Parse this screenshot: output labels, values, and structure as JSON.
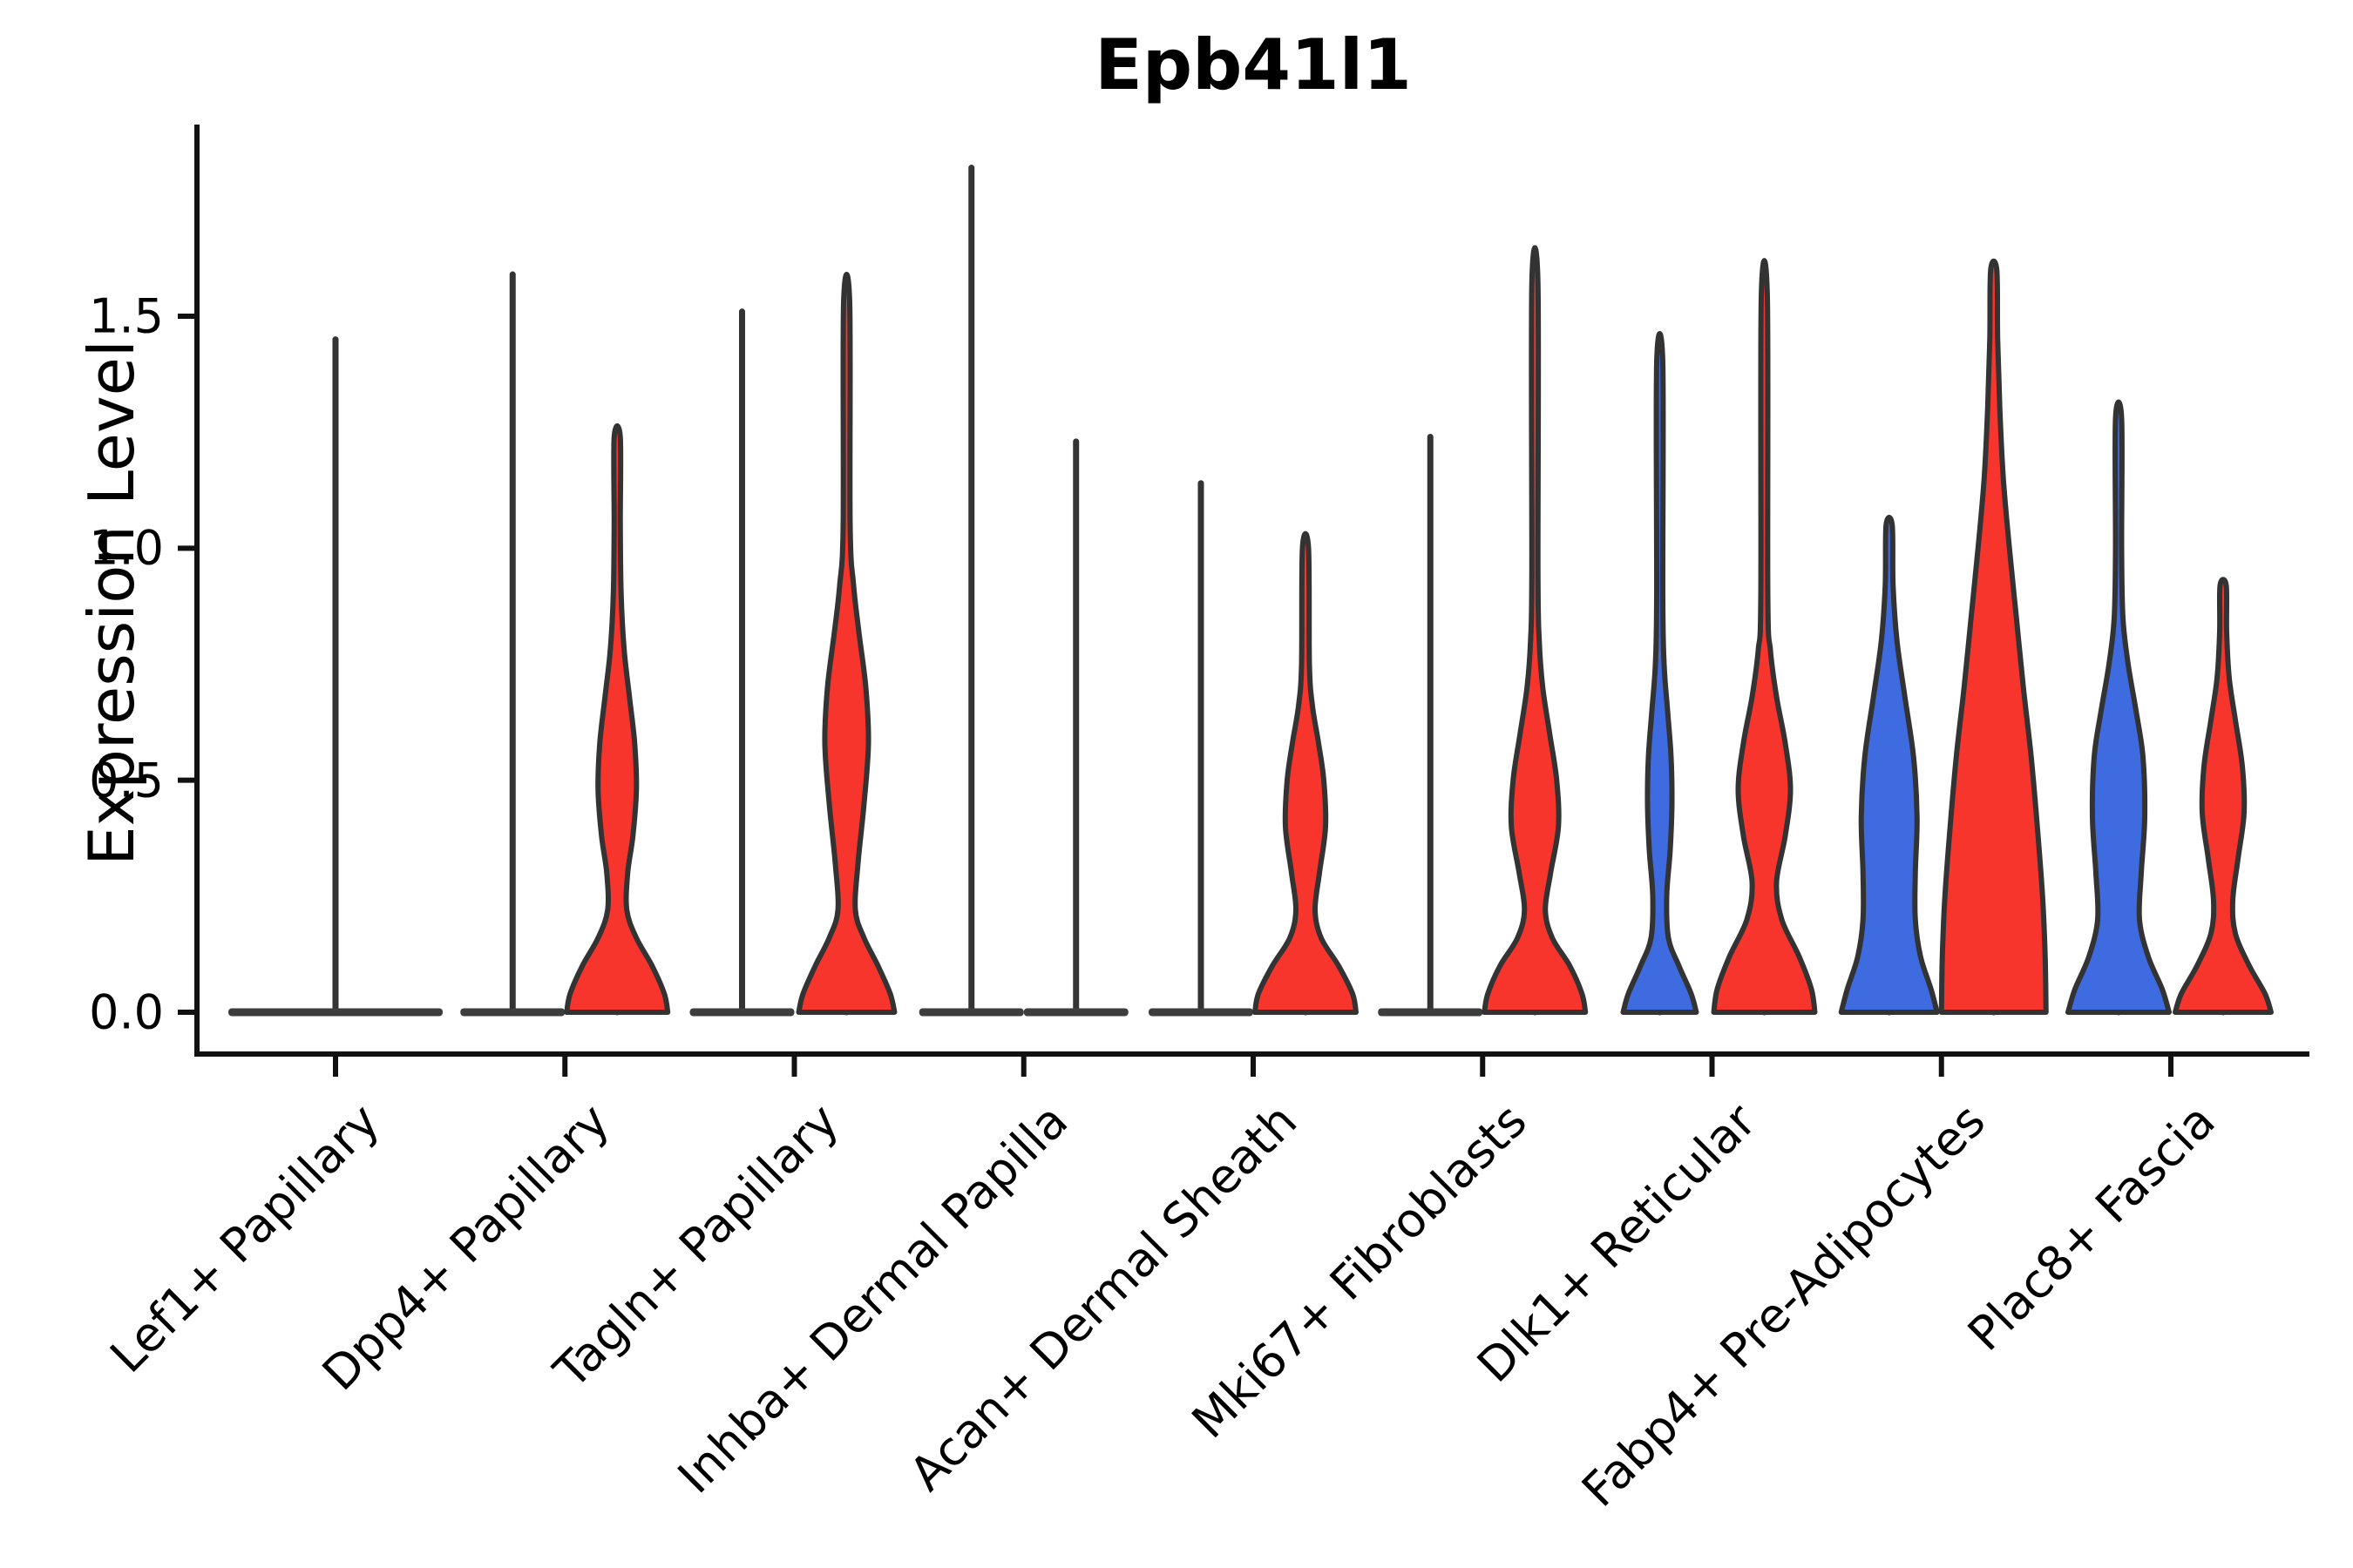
{
  "title": "Epb41l1",
  "y_axis_label": "Expression Level",
  "chart_data": {
    "type": "violin",
    "title": "Epb41l1",
    "ylabel": "Expression Level",
    "ylim": [
      -0.09,
      1.91
    ],
    "yticks": [
      0.0,
      0.5,
      1.0,
      1.5
    ],
    "ytick_labels": [
      "0.0",
      "0.5",
      "1.0",
      "1.5"
    ],
    "grid": false,
    "legend": "none",
    "colors": {
      "blue": "#3F6BE0",
      "red": "#F8352C",
      "outline": "#333333",
      "flat_bar": "#3d3d3d",
      "spine": "#111111"
    },
    "categories": [
      "Lef1+ Papillary",
      "Dpp4+ Papillary",
      "Tagln+ Papillary",
      "Inhba+ Dermal Papilla",
      "Acan+ Dermal Sheath",
      "Mki67+ Fibroblasts",
      "Dlk1+ Reticular",
      "Fabp4+ Pre-Adipocytes",
      "Plac8+ Fascia"
    ],
    "violins": [
      {
        "category": "Lef1+ Papillary",
        "pos": "center",
        "group": "single",
        "flat": true,
        "half_width": 123,
        "spike_top": 1.45
      },
      {
        "category": "Dpp4+ Papillary",
        "pos": "left",
        "group": "blue",
        "flat": true,
        "half_width": 60,
        "spike_top": 1.59
      },
      {
        "category": "Dpp4+ Papillary",
        "pos": "right",
        "group": "red",
        "flat": false,
        "spike_top": 1.24,
        "profile": [
          [
            0,
            58
          ],
          [
            0.04,
            54
          ],
          [
            0.1,
            40
          ],
          [
            0.16,
            22
          ],
          [
            0.22,
            11
          ],
          [
            0.3,
            12
          ],
          [
            0.38,
            18
          ],
          [
            0.48,
            22
          ],
          [
            0.58,
            20
          ],
          [
            0.68,
            14
          ],
          [
            0.78,
            8
          ],
          [
            0.9,
            4.5
          ],
          [
            1.05,
            3.5
          ],
          [
            1.24,
            3.5
          ]
        ]
      },
      {
        "category": "Tagln+ Papillary",
        "pos": "left",
        "group": "blue",
        "flat": true,
        "half_width": 60,
        "spike_top": 1.51
      },
      {
        "category": "Tagln+ Papillary",
        "pos": "right",
        "group": "red",
        "flat": false,
        "spike_top": 1.53,
        "profile": [
          [
            0,
            55
          ],
          [
            0.04,
            50
          ],
          [
            0.1,
            36
          ],
          [
            0.16,
            20
          ],
          [
            0.22,
            10
          ],
          [
            0.32,
            13
          ],
          [
            0.45,
            20
          ],
          [
            0.58,
            25
          ],
          [
            0.7,
            22
          ],
          [
            0.82,
            14
          ],
          [
            0.92,
            8
          ],
          [
            1.05,
            4
          ],
          [
            1.53,
            3.5
          ]
        ]
      },
      {
        "category": "Inhba+ Dermal Papilla",
        "pos": "left",
        "group": "blue",
        "flat": true,
        "half_width": 60,
        "spike_top": 1.82
      },
      {
        "category": "Inhba+ Dermal Papilla",
        "pos": "right",
        "group": "red",
        "flat": true,
        "half_width": 60,
        "spike_top": 1.23
      },
      {
        "category": "Acan+ Dermal Sheath",
        "pos": "left",
        "group": "blue",
        "flat": true,
        "half_width": 60,
        "spike_top": 1.14
      },
      {
        "category": "Acan+ Dermal Sheath",
        "pos": "right",
        "group": "red",
        "flat": false,
        "spike_top": 1.0,
        "profile": [
          [
            0,
            58
          ],
          [
            0.04,
            54
          ],
          [
            0.1,
            38
          ],
          [
            0.16,
            18
          ],
          [
            0.22,
            11
          ],
          [
            0.3,
            16
          ],
          [
            0.4,
            23
          ],
          [
            0.5,
            21
          ],
          [
            0.58,
            15
          ],
          [
            0.66,
            8
          ],
          [
            0.75,
            4.5
          ],
          [
            1.0,
            3.5
          ]
        ]
      },
      {
        "category": "Mki67+ Fibroblasts",
        "pos": "left",
        "group": "blue",
        "flat": true,
        "half_width": 60,
        "spike_top": 1.24
      },
      {
        "category": "Mki67+ Fibroblasts",
        "pos": "right",
        "group": "red",
        "flat": false,
        "spike_top": 1.57,
        "profile": [
          [
            0,
            58
          ],
          [
            0.04,
            54
          ],
          [
            0.1,
            40
          ],
          [
            0.16,
            20
          ],
          [
            0.22,
            12
          ],
          [
            0.3,
            18
          ],
          [
            0.4,
            27
          ],
          [
            0.5,
            25
          ],
          [
            0.6,
            17
          ],
          [
            0.7,
            9
          ],
          [
            0.8,
            5
          ],
          [
            0.95,
            3.5
          ],
          [
            1.57,
            3.5
          ]
        ]
      },
      {
        "category": "Dlk1+ Reticular",
        "pos": "left",
        "group": "blue",
        "flat": false,
        "spike_top": 1.4,
        "profile": [
          [
            0,
            42
          ],
          [
            0.04,
            36
          ],
          [
            0.1,
            22
          ],
          [
            0.16,
            10
          ],
          [
            0.25,
            8
          ],
          [
            0.35,
            12
          ],
          [
            0.45,
            14
          ],
          [
            0.55,
            13
          ],
          [
            0.65,
            9
          ],
          [
            0.75,
            5
          ],
          [
            0.9,
            3.5
          ],
          [
            1.4,
            3.5
          ]
        ]
      },
      {
        "category": "Dlk1+ Reticular",
        "pos": "right",
        "group": "red",
        "flat": false,
        "spike_top": 1.54,
        "profile": [
          [
            0,
            58
          ],
          [
            0.05,
            54
          ],
          [
            0.12,
            40
          ],
          [
            0.2,
            20
          ],
          [
            0.28,
            14
          ],
          [
            0.38,
            24
          ],
          [
            0.48,
            30
          ],
          [
            0.58,
            24
          ],
          [
            0.68,
            14
          ],
          [
            0.78,
            7
          ],
          [
            0.9,
            4
          ],
          [
            1.54,
            3.5
          ]
        ]
      },
      {
        "category": "Fabp4+ Pre-Adipocytes",
        "pos": "left",
        "group": "blue",
        "flat": false,
        "spike_top": 1.05,
        "profile": [
          [
            0,
            55
          ],
          [
            0.05,
            48
          ],
          [
            0.12,
            36
          ],
          [
            0.2,
            30
          ],
          [
            0.3,
            30
          ],
          [
            0.42,
            32
          ],
          [
            0.55,
            28
          ],
          [
            0.68,
            18
          ],
          [
            0.8,
            9
          ],
          [
            0.92,
            4.5
          ],
          [
            1.05,
            3.5
          ]
        ]
      },
      {
        "category": "Fabp4+ Pre-Adipocytes",
        "pos": "right",
        "group": "red",
        "flat": false,
        "spike_top": 1.6,
        "profile": [
          [
            0,
            60
          ],
          [
            0.12,
            59
          ],
          [
            0.25,
            56
          ],
          [
            0.4,
            50
          ],
          [
            0.55,
            43
          ],
          [
            0.7,
            34
          ],
          [
            0.85,
            26
          ],
          [
            1.0,
            18
          ],
          [
            1.15,
            11
          ],
          [
            1.3,
            7
          ],
          [
            1.45,
            4.5
          ],
          [
            1.6,
            3.5
          ]
        ]
      },
      {
        "category": "Plac8+ Fascia",
        "pos": "left",
        "group": "blue",
        "flat": false,
        "spike_top": 1.28,
        "profile": [
          [
            0,
            58
          ],
          [
            0.05,
            50
          ],
          [
            0.12,
            34
          ],
          [
            0.2,
            24
          ],
          [
            0.3,
            26
          ],
          [
            0.42,
            30
          ],
          [
            0.55,
            28
          ],
          [
            0.65,
            20
          ],
          [
            0.75,
            11
          ],
          [
            0.85,
            5
          ],
          [
            1.0,
            3.5
          ],
          [
            1.28,
            3.5
          ]
        ]
      },
      {
        "category": "Plac8+ Fascia",
        "pos": "right",
        "group": "red",
        "flat": false,
        "spike_top": 0.92,
        "profile": [
          [
            0,
            55
          ],
          [
            0.04,
            48
          ],
          [
            0.1,
            30
          ],
          [
            0.17,
            14
          ],
          [
            0.24,
            11
          ],
          [
            0.33,
            17
          ],
          [
            0.43,
            24
          ],
          [
            0.53,
            22
          ],
          [
            0.63,
            14
          ],
          [
            0.72,
            7
          ],
          [
            0.82,
            4
          ],
          [
            0.92,
            3.5
          ]
        ]
      }
    ]
  }
}
